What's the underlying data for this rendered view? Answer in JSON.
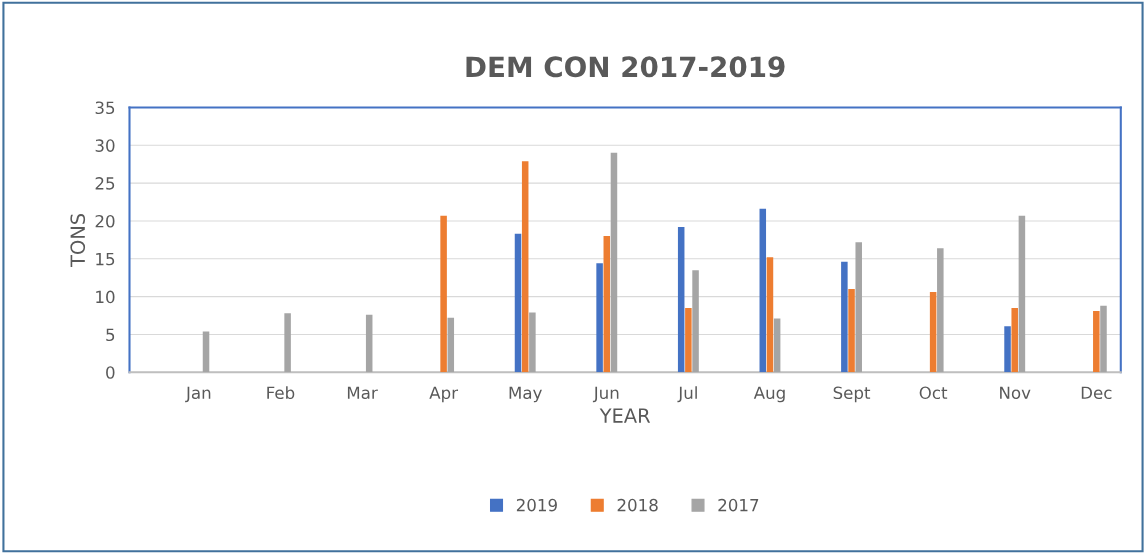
{
  "chart_data": {
    "type": "bar",
    "title": "DEM CON 2017-2019",
    "xlabel": "YEAR",
    "ylabel": "TONS",
    "categories": [
      "Jan",
      "Feb",
      "Mar",
      "Apr",
      "May",
      "Jun",
      "Jul",
      "Aug",
      "Sept",
      "Oct",
      "Nov",
      "Dec"
    ],
    "series": [
      {
        "name": "2019",
        "color": "#4472c4",
        "values": [
          null,
          null,
          null,
          null,
          18.3,
          14.4,
          19.2,
          21.6,
          14.6,
          null,
          6.1,
          null
        ]
      },
      {
        "name": "2018",
        "color": "#ed7d31",
        "values": [
          null,
          null,
          null,
          20.7,
          27.9,
          18.0,
          8.5,
          15.2,
          11.0,
          10.6,
          8.5,
          8.1
        ]
      },
      {
        "name": "2017",
        "color": "#a5a5a5",
        "values": [
          5.4,
          7.8,
          7.6,
          7.2,
          7.9,
          29.0,
          13.5,
          7.1,
          17.2,
          16.4,
          20.7,
          8.8
        ]
      }
    ],
    "ylim": [
      0,
      35
    ],
    "yticks": [
      0,
      5,
      10,
      15,
      20,
      25,
      30,
      35
    ],
    "grid": "y",
    "legend": "bottom"
  }
}
